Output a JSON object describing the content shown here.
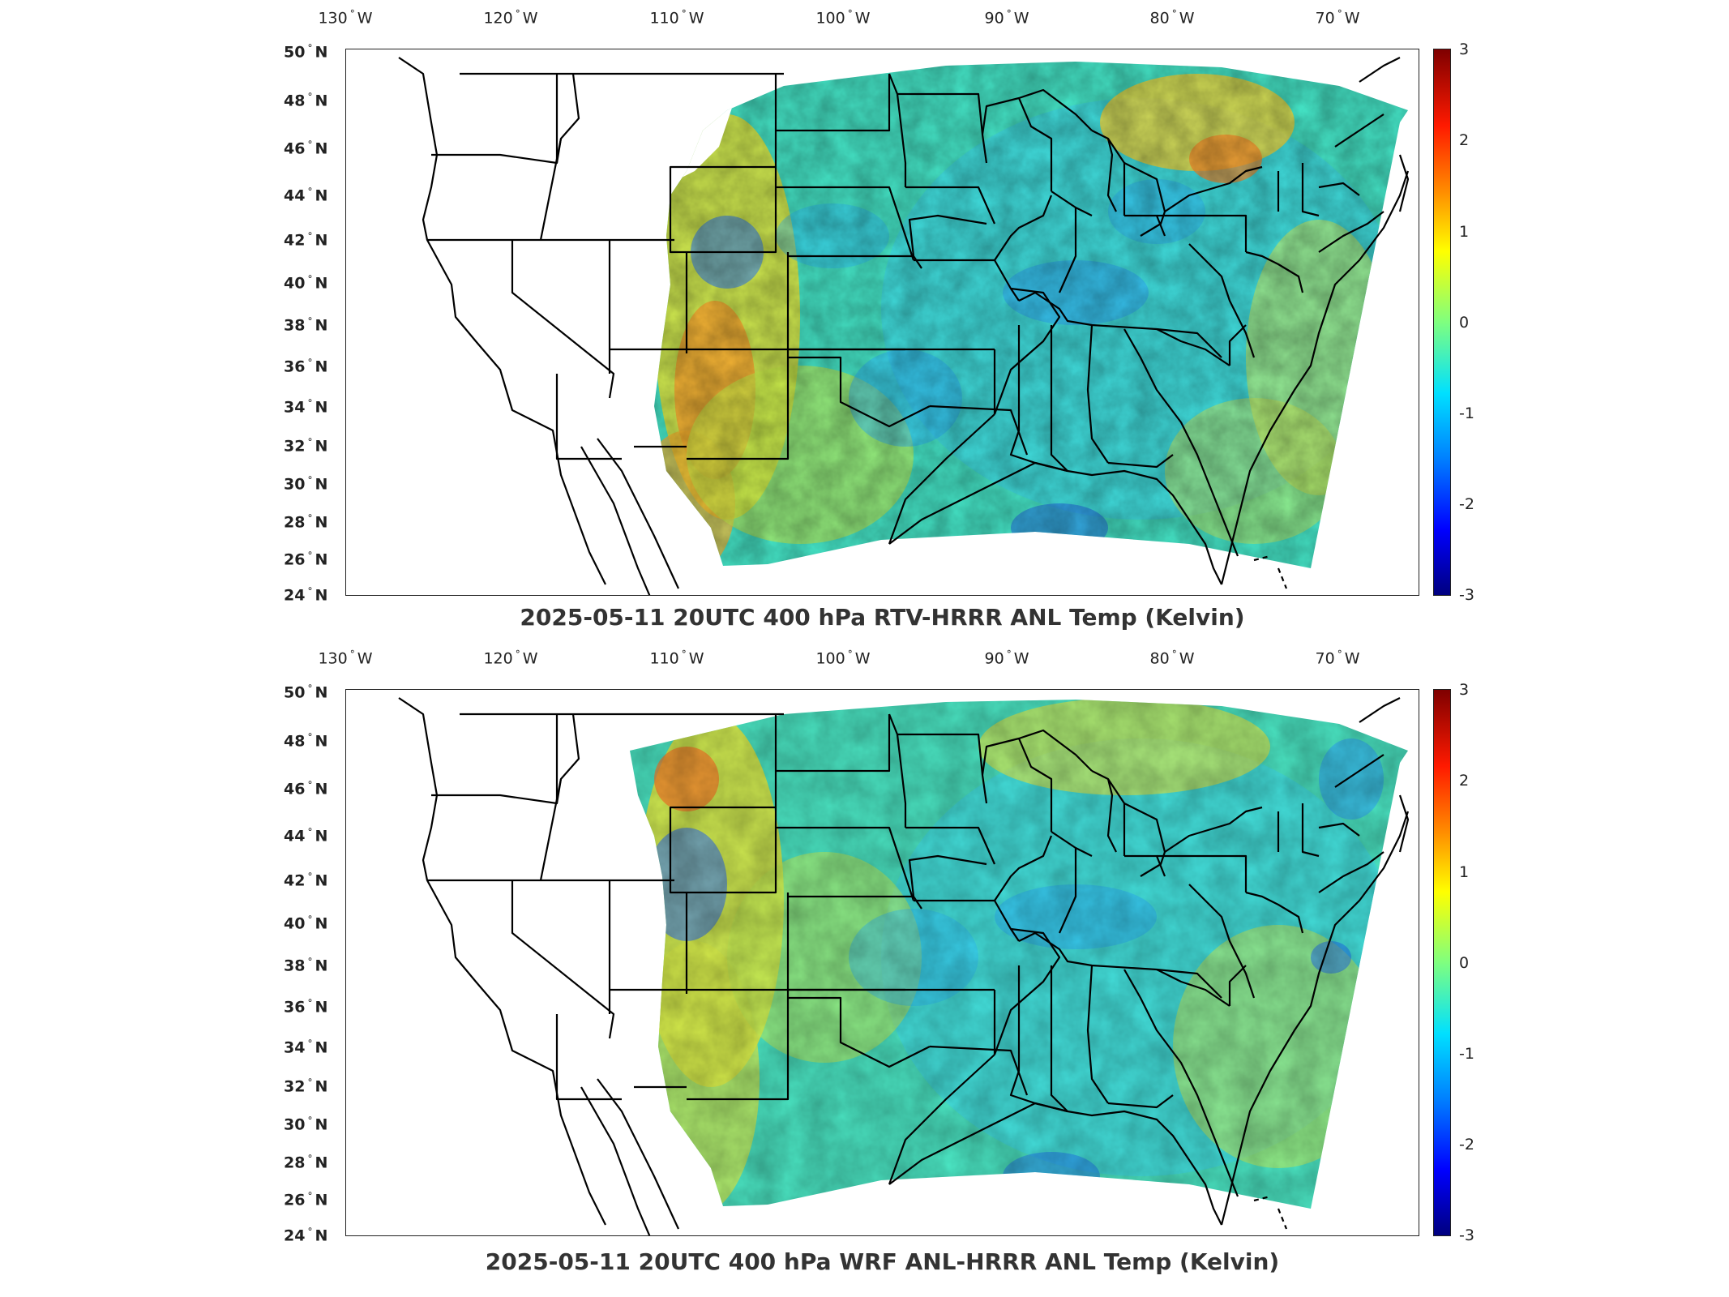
{
  "panels": [
    {
      "title": "2025-05-11 20UTC 400 hPa RTV-HRRR ANL Temp (Kelvin)",
      "lon_labels": [
        "130",
        "120",
        "110",
        "100",
        "90",
        "80",
        "70"
      ],
      "lon_suffix": "W",
      "lat_labels": [
        "50",
        "48",
        "46",
        "44",
        "42",
        "40",
        "38",
        "36",
        "34",
        "32",
        "30",
        "28",
        "26",
        "24"
      ],
      "lat_suffix": "N",
      "colorbar_ticks": [
        "3",
        "2",
        "1",
        "0",
        "-1",
        "-2",
        "-3"
      ]
    },
    {
      "title": "2025-05-11 20UTC 400 hPa WRF ANL-HRRR ANL Temp (Kelvin)",
      "lon_labels": [
        "130",
        "120",
        "110",
        "100",
        "90",
        "80",
        "70"
      ],
      "lon_suffix": "W",
      "lat_labels": [
        "50",
        "48",
        "46",
        "44",
        "42",
        "40",
        "38",
        "36",
        "34",
        "32",
        "30",
        "28",
        "26",
        "24"
      ],
      "lat_suffix": "N",
      "colorbar_ticks": [
        "3",
        "2",
        "1",
        "0",
        "-1",
        "-2",
        "-3"
      ]
    }
  ],
  "colormap": {
    "name": "jet",
    "range": [
      -3,
      3
    ],
    "colors": [
      "#00007f",
      "#0000ff",
      "#0080ff",
      "#00e0ff",
      "#7fff7f",
      "#ffff00",
      "#ff8c00",
      "#ff1a00",
      "#7f0000"
    ]
  }
}
